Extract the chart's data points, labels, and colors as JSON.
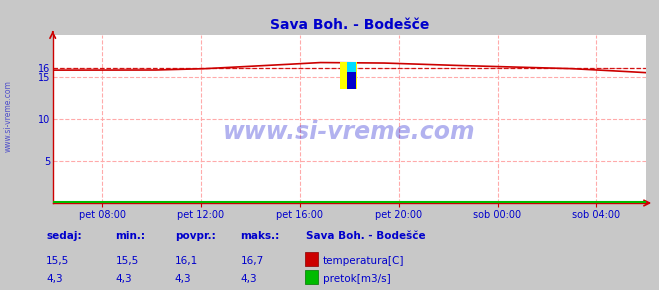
{
  "title": "Sava Boh. - Bodešče",
  "bg_color": "#c8c8c8",
  "plot_bg_color": "#ffffff",
  "grid_color": "#ffaaaa",
  "text_color": "#0000cc",
  "axis_color": "#cc0000",
  "temp_color": "#cc0000",
  "flow_color": "#00bb00",
  "avg_line_color": "#cc0000",
  "xlim": [
    0,
    288
  ],
  "ylim": [
    0,
    20
  ],
  "yticks": [
    5,
    10,
    15,
    16
  ],
  "ytick_labels": [
    "5",
    "10",
    "15",
    "16"
  ],
  "xtick_positions": [
    24,
    72,
    120,
    168,
    216,
    264
  ],
  "xtick_labels": [
    "pet 08:00",
    "pet 12:00",
    "pet 16:00",
    "pet 20:00",
    "sob 00:00",
    "sob 04:00"
  ],
  "temp_avg": 16.1,
  "watermark": "www.si-vreme.com",
  "station_label": "Sava Boh. - Bodešče",
  "legend_temp": "temperatura[C]",
  "legend_flow": "pretok[m3/s]",
  "left_label": "www.si-vreme.com",
  "sedaj_temp": "15,5",
  "min_temp": "15,5",
  "povpr_temp": "16,1",
  "maks_temp": "16,7",
  "sedaj_flow": "4,3",
  "min_flow": "4,3",
  "povpr_flow": "4,3",
  "maks_flow": "4,3"
}
